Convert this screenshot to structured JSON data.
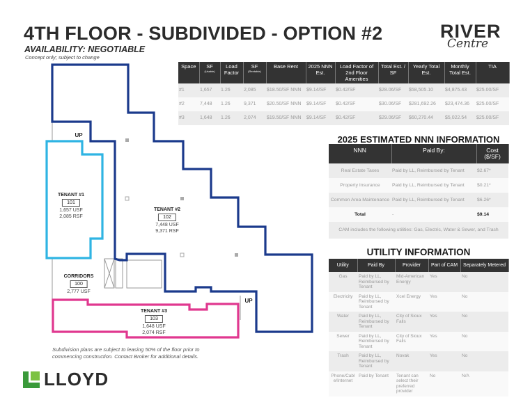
{
  "title": "4TH FLOOR - SUBDIVIDED - OPTION #2",
  "availability": "AVAILABILITY: NEGOTIABLE",
  "concept_note": "Concept only; subject to change",
  "brand": {
    "river": "RIVER",
    "centre": "Centre",
    "lloyd": "LLOYD"
  },
  "space_table": {
    "headers": [
      "Space",
      "SF",
      "Load Factor",
      "SF",
      "Base Rent",
      "2025 NNN Est.",
      "Load Factor of 2nd Floor Amenities",
      "Total Est. / SF",
      "Yearly Total Est.",
      "Monthly Total Est.",
      "TIA"
    ],
    "sub": {
      "usable": "(Usable)",
      "rentable": "(Rentable)"
    },
    "rows": [
      [
        "#1",
        "1,657",
        "1.26",
        "2,085",
        "$18.50/SF NNN",
        "$9.14/SF",
        "$0.42/SF",
        "$28.06/SF",
        "$58,505.10",
        "$4,875.43",
        "$25.00/SF"
      ],
      [
        "#2",
        "7,448",
        "1.26",
        "9,371",
        "$20.50/SF NNN",
        "$9.14/SF",
        "$0.42/SF",
        "$30.06/SF",
        "$281,692.26",
        "$23,474.36",
        "$25.00/SF"
      ],
      [
        "#3",
        "1,648",
        "1.26",
        "2,074",
        "$19.50/SF NNN",
        "$9.14/SF",
        "$0.42/SF",
        "$29.06/SF",
        "$60,270.44",
        "$5,022.54",
        "$25.00/SF"
      ]
    ]
  },
  "nnn": {
    "title": "2025 ESTIMATED NNN INFORMATION",
    "headers": [
      "NNN",
      "Paid By:",
      "Cost ($/SF)"
    ],
    "rows": [
      [
        "Real Estate Taxes",
        "Paid by LL, Reimbursed by Tenant",
        "$2.67*"
      ],
      [
        "Property Insurance",
        "Paid by LL, Reimbursed by Tenant",
        "$0.21*"
      ],
      [
        "Common Area Maintenance",
        "Paid by LL, Reimbursed by Tenant",
        "$6.26*"
      ],
      [
        "Total",
        "-",
        "$9.14"
      ]
    ],
    "footnote": "CAM includes the following utilities: Gas, Electric, Water & Sewer, and Trash"
  },
  "utility": {
    "title": "UTILITY INFORMATION",
    "headers": [
      "Utility",
      "Paid By",
      "Provider",
      "Part of CAM",
      "Separately Metered"
    ],
    "rows": [
      [
        "Gas",
        "Paid by LL, Reimbursed by Tenant",
        "Mid-American Energy",
        "Yes",
        "No"
      ],
      [
        "Electricity",
        "Paid by LL, Reimbursed by Tenant",
        "Xcel Energy",
        "Yes",
        "No"
      ],
      [
        "Water",
        "Paid by LL, Reimbursed by Tenant",
        "City of Sioux Falls",
        "Yes",
        "No"
      ],
      [
        "Sewer",
        "Paid by LL, Reimbursed by Tenant",
        "City of Sioux Falls",
        "Yes",
        "No"
      ],
      [
        "Trash",
        "Paid by LL, Reimbursed by Tenant",
        "Novak",
        "Yes",
        "No"
      ],
      [
        "Phone/Cable/Internet",
        "Paid by Tenant",
        "Tenant can select their preferred provider",
        "No",
        "N/A"
      ]
    ]
  },
  "plan": {
    "tenant1": {
      "name": "TENANT #1",
      "suite": "101",
      "usf": "1,657 USF",
      "rsf": "2,085 RSF"
    },
    "tenant2": {
      "name": "TENANT #2",
      "suite": "102",
      "usf": "7,448 USF",
      "rsf": "9,371 RSF"
    },
    "tenant3": {
      "name": "TENANT #3",
      "suite": "103",
      "usf": "1,648 USF",
      "rsf": "2,074 RSF"
    },
    "corridors": {
      "name": "CORRIDORS",
      "suite": "100",
      "usf": "2,777 USF"
    },
    "up": "UP",
    "colors": {
      "tenant1": "#2fb4e3",
      "tenant2": "#1b3a8c",
      "tenant3": "#e0388f"
    }
  },
  "subdivision_note": "Subdivision plans are subject to leasing 50% of the floor prior to commencing construction. Contact Broker for additional details."
}
